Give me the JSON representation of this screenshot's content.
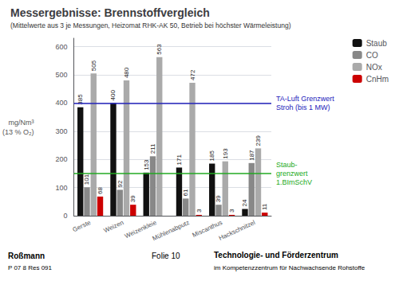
{
  "chart_data": {
    "type": "bar",
    "title": "Messergebnisse: Brennstoffvergleich",
    "subtitle": "(Mittelwerte aus 3 je Messungen, Heizomat RHK-AK 50, Betrieb bei höchster Wärmeleistung)",
    "ylabel": [
      "mg/Nm³",
      "(13 % O₂)"
    ],
    "categories": [
      "Gerste",
      "Weizen",
      "Weizenkleie",
      "Mühlenabputz",
      "Miscanthus",
      "Hackschnitzel"
    ],
    "series": [
      {
        "name": "Staub",
        "color": "#111111",
        "values": [
          385,
          400,
          153,
          171,
          185,
          24
        ]
      },
      {
        "name": "CO",
        "color": "#888888",
        "values": [
          101,
          92,
          211,
          61,
          39,
          187
        ]
      },
      {
        "name": "NOx",
        "color": "#aaaaaa",
        "values": [
          505,
          480,
          563,
          472,
          193,
          239
        ]
      },
      {
        "name": "CnHm",
        "color": "#cc0000",
        "values": [
          68,
          39,
          0,
          3,
          3,
          11
        ],
        "value_labels": [
          "68",
          "39",
          null,
          "3",
          "3",
          "11"
        ]
      }
    ],
    "data_labels": true,
    "ylim": [
      0,
      630
    ],
    "yticks": [
      0,
      100,
      200,
      300,
      400,
      500,
      600
    ],
    "grid": true,
    "legend": "upper right",
    "annotations": [
      {
        "y": 400,
        "color": "#2222bb",
        "text": [
          "TA-Luft Grenzwert",
          "Stroh (bis 1 MW)"
        ]
      },
      {
        "y": 150,
        "color": "#22aa22",
        "text": [
          "Staub-",
          "grenzwert",
          "1.BImSchV"
        ]
      }
    ],
    "footer": [
      "Roßmann",
      "P 07 8 Res 091",
      "Folie 10",
      "Technologie- und Förderzentrum",
      "im Kompetenzzentrum für Nachwachsende Rohstoffe"
    ]
  }
}
